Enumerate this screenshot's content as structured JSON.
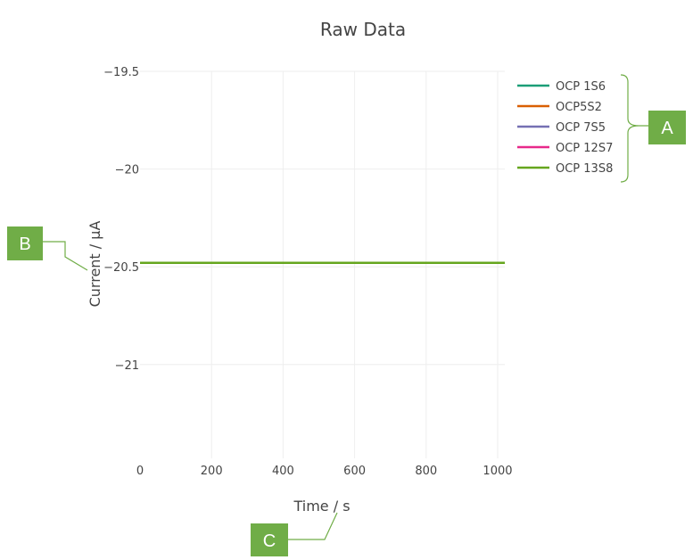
{
  "chart_data": {
    "type": "line",
    "title": "Raw Data",
    "xlabel": "Time / s",
    "ylabel": "Current / µA",
    "xlim": [
      0,
      1020
    ],
    "ylim": [
      -21.48,
      -19.5
    ],
    "x_ticks": [
      0,
      200,
      400,
      600,
      800,
      1000
    ],
    "y_ticks": [
      -19.5,
      -20,
      -20.5,
      -21
    ],
    "x_tick_labels": [
      "0",
      "200",
      "400",
      "600",
      "800",
      "1000"
    ],
    "y_tick_labels": [
      "−19.5",
      "−20",
      "−20.5",
      "−21"
    ],
    "grid": true,
    "legend_position": "right",
    "series": [
      {
        "name": "OCP 1S6",
        "color": "#1b9e77",
        "x": [
          0,
          1020
        ],
        "y": [
          -20.48,
          -20.48
        ]
      },
      {
        "name": "OCP5S2",
        "color": "#d95f02",
        "x": [
          0,
          1020
        ],
        "y": [
          -20.48,
          -20.48
        ]
      },
      {
        "name": "OCP 7S5",
        "color": "#7570b3",
        "x": [
          0,
          1020
        ],
        "y": [
          -20.48,
          -20.48
        ]
      },
      {
        "name": "OCP 12S7",
        "color": "#e7298a",
        "x": [
          0,
          1020
        ],
        "y": [
          -20.48,
          -20.48
        ]
      },
      {
        "name": "OCP 13S8",
        "color": "#66a61e",
        "x": [
          0,
          1020
        ],
        "y": [
          -20.48,
          -20.48
        ]
      }
    ]
  },
  "callouts": {
    "a": "A",
    "b": "B",
    "c": "C",
    "color": "#70ad47"
  }
}
